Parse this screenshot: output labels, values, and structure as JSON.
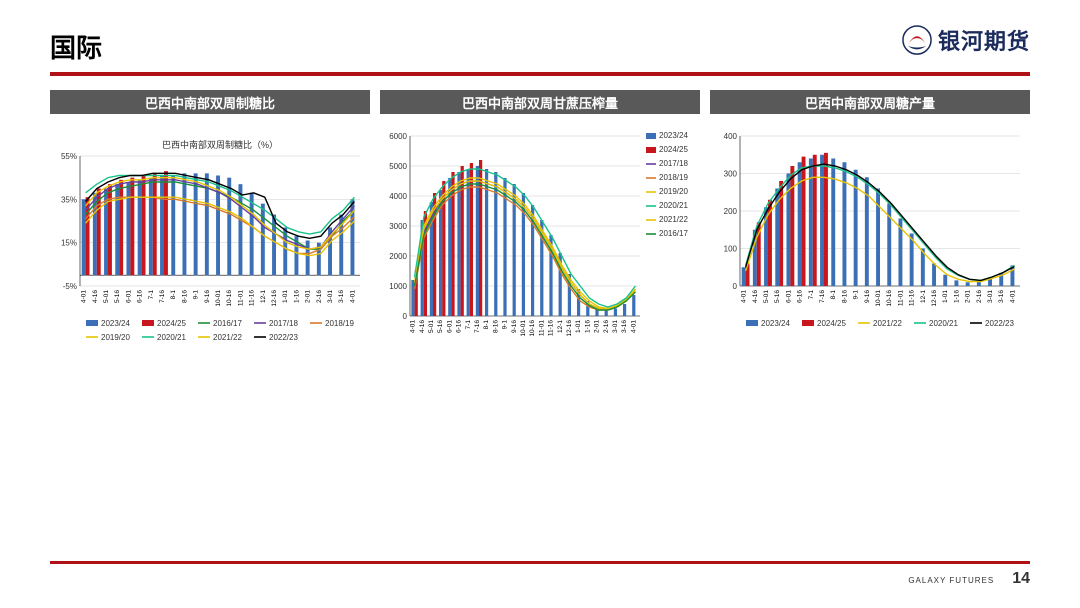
{
  "page": {
    "title": "国际",
    "logo_text": "银河期货",
    "footer_brand": "GALAXY FUTURES",
    "page_number": "14",
    "accent_color": "#b01117",
    "header_bar_color": "#595959"
  },
  "x_categories": [
    "4-01",
    "4-16",
    "5-01",
    "5-16",
    "6-01",
    "6-16",
    "7-1",
    "7-16",
    "8-1",
    "8-16",
    "9-1",
    "9-16",
    "10-01",
    "10-16",
    "11-01",
    "11-16",
    "12-1",
    "12-16",
    "1-01",
    "1-16",
    "2-01",
    "2-16",
    "3-01",
    "3-16",
    "4-01"
  ],
  "series_colors": {
    "2023/24": "#3b6fb6",
    "2024/25": "#c8161d",
    "2016/17": "#1a8f3a",
    "2017/18": "#6a3ea0",
    "2018/19": "#d97a2b",
    "2019/20": "#e8c400",
    "2020/21": "#19c28a",
    "2021/22": "#e8c400",
    "2022/23": "#000000"
  },
  "chart_a": {
    "title": "巴西中南部双周制糖比",
    "subtitle": "巴西中南部双周制糖比（%）",
    "ylim": [
      -5,
      55
    ],
    "ytick_step": 20,
    "ytick_labels": [
      "-5%",
      "15%",
      "35%",
      "55%"
    ],
    "bar_series": {
      "2023/24": [
        35,
        38,
        40,
        42,
        43,
        44,
        45,
        46,
        46,
        47,
        47,
        47,
        46,
        45,
        42,
        38,
        33,
        28,
        22,
        18,
        16,
        15,
        22,
        28,
        35
      ],
      "2024/25": [
        36,
        40,
        42,
        44,
        45,
        46,
        47,
        48
      ]
    },
    "line_series": {
      "2016/17": [
        28,
        34,
        38,
        40,
        41,
        42,
        43,
        43,
        43,
        42,
        41,
        40,
        38,
        36,
        33,
        30,
        26,
        22,
        18,
        15,
        12,
        12,
        18,
        25,
        30
      ],
      "2017/18": [
        30,
        36,
        40,
        42,
        43,
        43,
        44,
        44,
        44,
        43,
        42,
        40,
        38,
        35,
        31,
        27,
        22,
        19,
        16,
        14,
        12,
        13,
        20,
        26,
        32
      ],
      "2018/19": [
        26,
        32,
        35,
        36,
        36,
        36,
        36,
        35,
        35,
        34,
        33,
        32,
        30,
        28,
        25,
        22,
        18,
        15,
        12,
        10,
        10,
        12,
        18,
        22,
        27
      ],
      "2019/20": [
        24,
        30,
        34,
        35,
        36,
        36,
        36,
        36,
        36,
        35,
        34,
        33,
        31,
        29,
        26,
        22,
        18,
        15,
        12,
        10,
        9,
        10,
        16,
        20,
        25
      ],
      "2020/21": [
        38,
        42,
        45,
        46,
        46,
        46,
        46,
        46,
        46,
        45,
        44,
        43,
        41,
        39,
        36,
        33,
        30,
        26,
        22,
        20,
        19,
        20,
        26,
        30,
        36
      ],
      "2021/22": [
        32,
        38,
        41,
        43,
        44,
        44,
        45,
        45,
        45,
        44,
        43,
        41,
        39,
        36,
        32,
        28,
        23,
        19,
        15,
        13,
        12,
        13,
        19,
        24,
        30
      ],
      "2022/23": [
        34,
        40,
        43,
        45,
        46,
        46,
        47,
        47,
        47,
        46,
        45,
        44,
        42,
        40,
        37,
        38,
        36,
        24,
        20,
        18,
        17,
        18,
        24,
        28,
        34
      ]
    },
    "legend_order": [
      "2023/24",
      "2024/25",
      "2016/17",
      "2017/18",
      "2018/19",
      "2019/20",
      "2020/21",
      "2021/22",
      "2022/23"
    ],
    "legend_type": {
      "2023/24": "bar",
      "2024/25": "bar"
    }
  },
  "chart_b": {
    "title": "巴西中南部双周甘蔗压榨量",
    "ylim": [
      0,
      6000
    ],
    "ytick_step": 1000,
    "bar_series": {
      "2023/24": [
        1200,
        3200,
        3800,
        4200,
        4600,
        4800,
        4900,
        5000,
        4900,
        4800,
        4600,
        4400,
        4100,
        3700,
        3200,
        2700,
        2100,
        1400,
        900,
        500,
        300,
        200,
        250,
        400,
        700
      ],
      "2024/25": [
        1500,
        3500,
        4100,
        4500,
        4800,
        5000,
        5100,
        5200
      ]
    },
    "line_series": {
      "2017/18": [
        1000,
        2800,
        3400,
        3900,
        4200,
        4400,
        4500,
        4500,
        4400,
        4300,
        4100,
        3900,
        3600,
        3200,
        2700,
        2200,
        1600,
        1100,
        700,
        400,
        250,
        200,
        300,
        500,
        900
      ],
      "2018/19": [
        900,
        2600,
        3200,
        3700,
        4000,
        4200,
        4300,
        4300,
        4200,
        4100,
        3900,
        3700,
        3400,
        3000,
        2500,
        2000,
        1400,
        900,
        500,
        300,
        200,
        200,
        300,
        500,
        800
      ],
      "2019/20": [
        1100,
        3000,
        3600,
        4000,
        4300,
        4500,
        4600,
        4600,
        4500,
        4400,
        4200,
        4000,
        3700,
        3300,
        2800,
        2300,
        1700,
        1200,
        800,
        500,
        300,
        250,
        350,
        550,
        900
      ],
      "2020/21": [
        1300,
        3300,
        3900,
        4300,
        4600,
        4800,
        4900,
        4900,
        4800,
        4700,
        4500,
        4300,
        4000,
        3600,
        3100,
        2600,
        2000,
        1400,
        1000,
        600,
        400,
        300,
        400,
        600,
        1000
      ],
      "2021/22": [
        1100,
        2900,
        3500,
        3900,
        4200,
        4400,
        4500,
        4500,
        4400,
        4300,
        4100,
        3900,
        3600,
        3200,
        2700,
        2200,
        1600,
        1100,
        700,
        400,
        250,
        200,
        300,
        500,
        850
      ],
      "2016/17": [
        1000,
        2700,
        3300,
        3800,
        4100,
        4300,
        4400,
        4400,
        4300,
        4200,
        4000,
        3800,
        3500,
        3100,
        2600,
        2100,
        1500,
        1000,
        600,
        350,
        200,
        200,
        300,
        500,
        800
      ]
    },
    "legend_order": [
      "2023/24",
      "2024/25",
      "2017/18",
      "2018/19",
      "2019/20",
      "2020/21",
      "2021/22",
      "2016/17"
    ],
    "legend_type": {
      "2023/24": "bar",
      "2024/25": "bar"
    },
    "legend_position": "right"
  },
  "chart_c": {
    "title": "巴西中南部双周糖产量",
    "ylim": [
      0,
      400
    ],
    "ytick_step": 100,
    "bar_series": {
      "2023/24": [
        50,
        150,
        210,
        260,
        300,
        330,
        340,
        350,
        340,
        330,
        310,
        290,
        260,
        220,
        180,
        140,
        100,
        60,
        30,
        15,
        10,
        12,
        20,
        35,
        55
      ],
      "2024/25": [
        60,
        170,
        230,
        280,
        320,
        345,
        350,
        355
      ]
    },
    "line_series": {
      "2021/22": [
        40,
        130,
        190,
        230,
        260,
        280,
        290,
        290,
        285,
        275,
        260,
        240,
        210,
        180,
        150,
        120,
        85,
        55,
        30,
        18,
        12,
        12,
        20,
        30,
        45
      ],
      "2020/21": [
        55,
        160,
        220,
        260,
        295,
        315,
        320,
        320,
        315,
        305,
        290,
        270,
        245,
        215,
        180,
        145,
        110,
        75,
        45,
        28,
        18,
        15,
        24,
        36,
        55
      ],
      "2022/23": [
        50,
        150,
        205,
        250,
        285,
        310,
        320,
        325,
        320,
        310,
        295,
        275,
        250,
        220,
        185,
        150,
        115,
        80,
        50,
        30,
        18,
        15,
        24,
        36,
        52
      ]
    },
    "legend_order": [
      "2023/24",
      "2024/25",
      "2021/22",
      "2020/21",
      "2022/23"
    ],
    "legend_type": {
      "2023/24": "bar",
      "2024/25": "bar"
    },
    "legend_position": "bottom"
  }
}
